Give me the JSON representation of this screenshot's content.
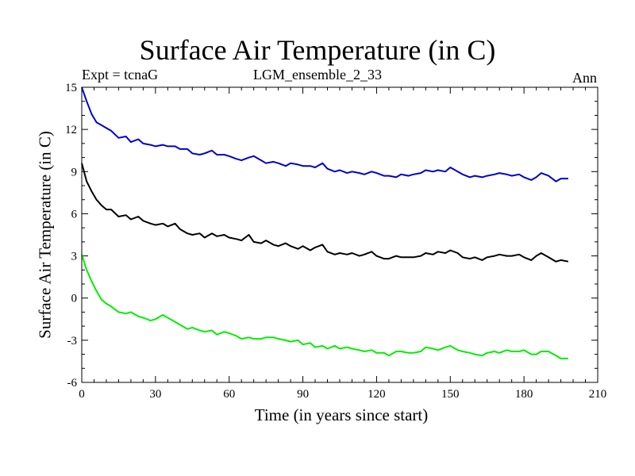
{
  "chart_data": {
    "type": "line",
    "title": "Surface Air Temperature (in C)",
    "subtitle_left": "Expt = tcnaG",
    "subtitle_center": "LGM_ensemble_2_33",
    "subtitle_right": "Ann",
    "xlabel": "Time (in years since start)",
    "ylabel": "Surface Air Temperature (in C)",
    "xlim": [
      0,
      210
    ],
    "ylim": [
      -6,
      15
    ],
    "xticks": [
      0,
      30,
      60,
      90,
      120,
      150,
      180,
      210
    ],
    "yticks": [
      -6,
      -3,
      0,
      3,
      6,
      9,
      12,
      15
    ],
    "x_minor_step": 5,
    "y_minor_step": 1,
    "series": [
      {
        "name": "blue",
        "color": "#0000cc",
        "x": [
          0,
          2,
          4,
          6,
          8,
          10,
          12,
          15,
          18,
          20,
          23,
          25,
          28,
          30,
          33,
          35,
          38,
          40,
          43,
          45,
          48,
          50,
          53,
          55,
          58,
          60,
          63,
          65,
          68,
          70,
          73,
          75,
          78,
          80,
          83,
          85,
          88,
          90,
          93,
          95,
          98,
          100,
          103,
          105,
          108,
          110,
          113,
          115,
          118,
          120,
          123,
          125,
          128,
          130,
          133,
          135,
          138,
          140,
          143,
          145,
          148,
          150,
          153,
          155,
          158,
          160,
          163,
          165,
          168,
          170,
          173,
          175,
          178,
          180,
          183,
          185,
          187,
          190,
          193,
          195,
          198
        ],
        "y": [
          15.0,
          14.0,
          13.1,
          12.5,
          12.3,
          12.1,
          11.9,
          11.4,
          11.5,
          11.1,
          11.3,
          11.0,
          10.9,
          10.8,
          10.9,
          10.8,
          10.8,
          10.6,
          10.6,
          10.3,
          10.2,
          10.3,
          10.5,
          10.2,
          10.2,
          10.1,
          9.9,
          9.8,
          10.0,
          10.1,
          9.8,
          9.6,
          9.7,
          9.6,
          9.4,
          9.6,
          9.5,
          9.4,
          9.4,
          9.3,
          9.6,
          9.2,
          9.0,
          9.1,
          8.9,
          9.0,
          8.9,
          8.8,
          9.0,
          8.9,
          8.7,
          8.7,
          8.6,
          8.8,
          8.7,
          8.8,
          8.9,
          9.1,
          9.0,
          9.1,
          9.0,
          9.3,
          9.0,
          8.8,
          8.6,
          8.7,
          8.6,
          8.7,
          8.8,
          8.9,
          8.8,
          8.7,
          8.8,
          8.6,
          8.4,
          8.6,
          8.9,
          8.7,
          8.3,
          8.5,
          8.5
        ]
      },
      {
        "name": "black",
        "color": "#000000",
        "x": [
          0,
          2,
          4,
          6,
          8,
          10,
          12,
          15,
          18,
          20,
          23,
          25,
          28,
          30,
          33,
          35,
          38,
          40,
          43,
          45,
          48,
          50,
          53,
          55,
          58,
          60,
          63,
          65,
          68,
          70,
          73,
          75,
          78,
          80,
          83,
          85,
          88,
          90,
          93,
          95,
          98,
          100,
          103,
          105,
          108,
          110,
          113,
          115,
          118,
          120,
          123,
          125,
          128,
          130,
          133,
          135,
          138,
          140,
          143,
          145,
          148,
          150,
          153,
          155,
          158,
          160,
          163,
          165,
          168,
          170,
          173,
          175,
          178,
          180,
          183,
          185,
          187,
          190,
          193,
          195,
          198
        ],
        "y": [
          9.6,
          8.3,
          7.6,
          7.0,
          6.6,
          6.3,
          6.3,
          5.8,
          5.9,
          5.6,
          5.8,
          5.5,
          5.3,
          5.2,
          5.3,
          5.1,
          5.3,
          4.9,
          4.6,
          4.5,
          4.6,
          4.3,
          4.6,
          4.4,
          4.5,
          4.3,
          4.2,
          4.1,
          4.5,
          4.0,
          3.9,
          4.1,
          3.8,
          3.7,
          3.9,
          3.7,
          3.5,
          3.7,
          3.4,
          3.6,
          3.8,
          3.3,
          3.1,
          3.2,
          3.1,
          3.2,
          3.0,
          3.1,
          3.3,
          3.0,
          2.8,
          2.8,
          3.0,
          2.9,
          2.9,
          2.9,
          3.0,
          3.2,
          3.1,
          3.3,
          3.2,
          3.4,
          3.2,
          2.9,
          2.8,
          2.9,
          2.7,
          2.9,
          3.0,
          3.1,
          3.0,
          3.0,
          3.1,
          2.9,
          2.7,
          3.0,
          3.2,
          2.9,
          2.6,
          2.7,
          2.6
        ]
      },
      {
        "name": "green",
        "color": "#00ee00",
        "x": [
          0,
          2,
          4,
          6,
          8,
          10,
          12,
          15,
          18,
          20,
          23,
          25,
          28,
          30,
          33,
          35,
          38,
          40,
          43,
          45,
          48,
          50,
          53,
          55,
          58,
          60,
          63,
          65,
          68,
          70,
          73,
          75,
          78,
          80,
          83,
          85,
          88,
          90,
          93,
          95,
          98,
          100,
          103,
          105,
          108,
          110,
          113,
          115,
          118,
          120,
          123,
          125,
          128,
          130,
          133,
          135,
          138,
          140,
          143,
          145,
          148,
          150,
          153,
          155,
          158,
          160,
          163,
          165,
          168,
          170,
          173,
          175,
          178,
          180,
          183,
          185,
          187,
          190,
          193,
          195,
          198
        ],
        "y": [
          3.1,
          2.0,
          1.2,
          0.5,
          -0.1,
          -0.4,
          -0.6,
          -1.0,
          -1.1,
          -1.0,
          -1.3,
          -1.4,
          -1.6,
          -1.5,
          -1.2,
          -1.4,
          -1.7,
          -1.9,
          -2.2,
          -2.1,
          -2.3,
          -2.4,
          -2.3,
          -2.6,
          -2.4,
          -2.5,
          -2.7,
          -2.9,
          -2.8,
          -2.9,
          -2.9,
          -2.8,
          -2.8,
          -2.9,
          -3.0,
          -3.1,
          -3.0,
          -3.3,
          -3.2,
          -3.5,
          -3.4,
          -3.6,
          -3.4,
          -3.6,
          -3.5,
          -3.6,
          -3.7,
          -3.8,
          -3.7,
          -3.9,
          -3.9,
          -4.1,
          -3.8,
          -3.8,
          -3.9,
          -3.9,
          -3.8,
          -3.5,
          -3.6,
          -3.7,
          -3.5,
          -3.4,
          -3.7,
          -3.8,
          -3.9,
          -4.0,
          -4.1,
          -3.9,
          -3.8,
          -3.9,
          -3.7,
          -3.8,
          -3.8,
          -3.7,
          -4.0,
          -4.0,
          -3.8,
          -3.8,
          -4.1,
          -4.3,
          -4.3
        ]
      }
    ]
  }
}
